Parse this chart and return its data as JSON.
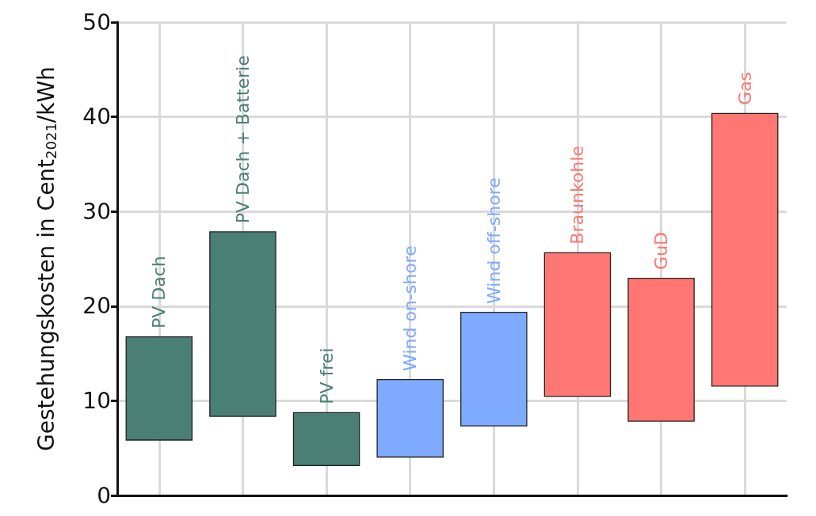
{
  "chart_data": {
    "type": "bar",
    "ylabel": "Gestehungskosten in Cent$_{2021}$/kWh",
    "categories": [
      "PV Dach",
      "PV Dach + Batterie",
      "PV frei",
      "Wind on-shore",
      "Wind off-shore",
      "Braunkohle",
      "GuD",
      "Gas"
    ],
    "base": [
      5.8,
      8.3,
      3.1,
      4.0,
      7.3,
      10.4,
      7.8,
      11.5
    ],
    "values": [
      11.0,
      19.6,
      5.7,
      8.3,
      12.1,
      15.3,
      15.2,
      28.9
    ],
    "colors": [
      "#4a7f76",
      "#4a7f76",
      "#4a7f76",
      "#7eaaff",
      "#7eaaff",
      "#ff7672",
      "#ff7672",
      "#ff7672"
    ],
    "ylim": [
      0,
      50
    ],
    "yticks": [
      0,
      10,
      20,
      30,
      40,
      50
    ],
    "grid": true,
    "tick_labels": "y"
  }
}
